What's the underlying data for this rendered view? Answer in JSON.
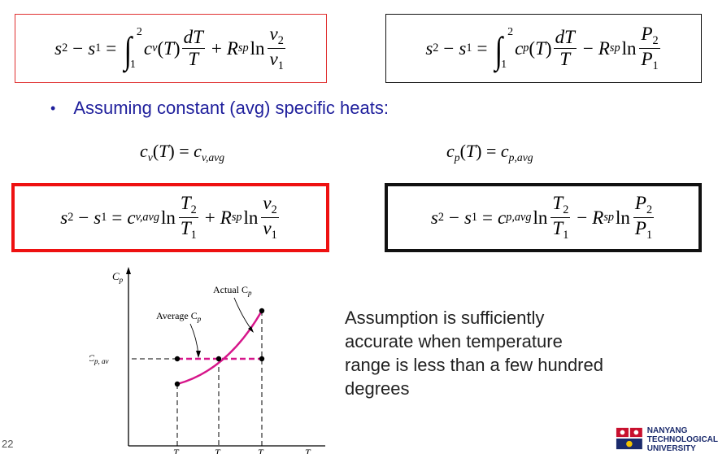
{
  "equations": {
    "top_left": {
      "lhs": "s",
      "sub2": "2",
      "sub1": "1",
      "lower": "1",
      "upper": "2",
      "cv": "c",
      "cv_sub": "v",
      "argT": "(T)",
      "dT": "dT",
      "T": "T",
      "plus": "+",
      "R": "R",
      "sp": "sp",
      "ln": "ln",
      "v2": "v",
      "v1": "v"
    },
    "top_right": {
      "cp_sub": "p",
      "minus": "−",
      "P": "P"
    },
    "bottom_left": {
      "cavg_sub": "v,avg",
      "T2": "T",
      "T1": "T"
    },
    "bottom_right": {
      "cavg_sub": "p,avg"
    },
    "const_left": {
      "lhs_sub": "v",
      "rhs_sub": "v,avg"
    },
    "const_right": {
      "lhs_sub": "p",
      "rhs_sub": "p,avg"
    }
  },
  "bullet": {
    "dot": "•",
    "text": "Assuming constant (avg) specific heats:"
  },
  "figure": {
    "y_axis_label": "C",
    "y_axis_sub": "p",
    "cp_av_label": "C",
    "cp_av_sub": "p, av",
    "actual_label": "Actual C",
    "actual_sub": "p",
    "average_label": "Average C",
    "average_sub": "p",
    "tick_label": "T",
    "colors": {
      "curve": "#d6168a",
      "average_line": "#d6168a",
      "axes": "#000000"
    }
  },
  "note": "Assumption is sufficiently accurate when temperature range is less than a few hundred degrees",
  "page_number": "22",
  "logo": {
    "line1": "NANYANG",
    "line2": "TECHNOLOGICAL",
    "line3": "UNIVERSITY",
    "colors": {
      "red": "#c8102e",
      "blue": "#1a2a6c"
    }
  }
}
